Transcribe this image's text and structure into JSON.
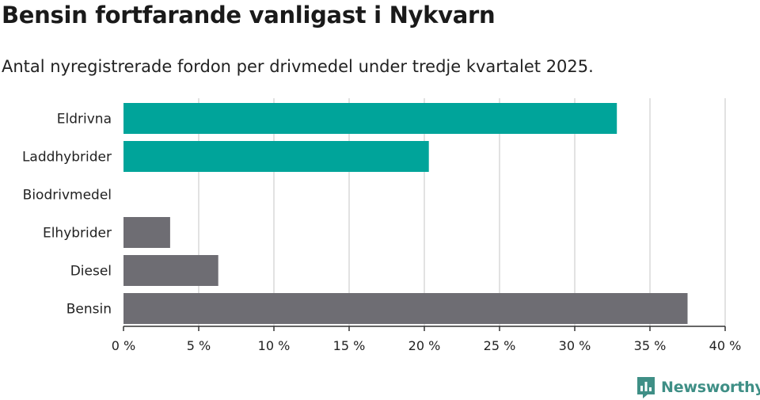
{
  "header": {
    "title": "Bensin fortfarande vanligast i Nykvarn",
    "subtitle": "Antal nyregistrerade fordon per drivmedel under tredje kvartalet 2025."
  },
  "branding": {
    "logo_text": "Newsworthy",
    "logo_icon": "bar-chart-speech-bubble-icon",
    "color": "#3f8f86"
  },
  "colors": {
    "highlight": "#00a49a",
    "default": "#6e6d73",
    "grid": "#d9d9d9",
    "axis": "#333333"
  },
  "chart_data": {
    "type": "bar",
    "orientation": "horizontal",
    "title": "Bensin fortfarande vanligast i Nykvarn",
    "subtitle": "Antal nyregistrerade fordon per drivmedel under tredje kvartalet 2025.",
    "xlabel": "",
    "ylabel": "",
    "categories": [
      "Eldrivna",
      "Laddhybrider",
      "Biodrivmedel",
      "Elhybrider",
      "Diesel",
      "Bensin"
    ],
    "values": [
      32.8,
      20.3,
      0,
      3.1,
      6.3,
      37.5
    ],
    "highlight": [
      true,
      true,
      false,
      false,
      false,
      false
    ],
    "xlim": [
      0,
      40
    ],
    "ticks": [
      0,
      5,
      10,
      15,
      20,
      25,
      30,
      35,
      40
    ],
    "tick_labels": [
      "0 %",
      "5 %",
      "10 %",
      "15 %",
      "20 %",
      "25 %",
      "30 %",
      "35 %",
      "40 %"
    ],
    "grid": true
  }
}
